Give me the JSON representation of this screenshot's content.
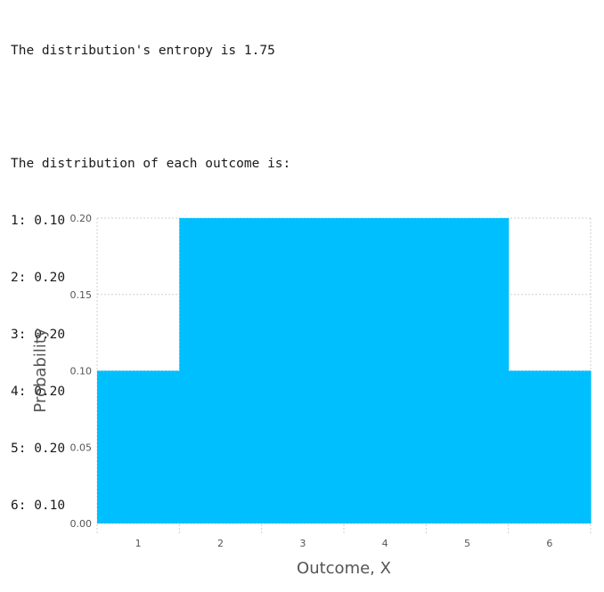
{
  "output": {
    "entropy_line": "The distribution's entropy is 1.75",
    "heading": "The distribution of each outcome is:",
    "rows": [
      "1: 0.10",
      "2: 0.20",
      "3: 0.20",
      "4: 0.20",
      "5: 0.20",
      "6: 0.10"
    ]
  },
  "chart_data": {
    "type": "bar",
    "categories": [
      "1",
      "2",
      "3",
      "4",
      "5",
      "6"
    ],
    "values": [
      0.1,
      0.2,
      0.2,
      0.2,
      0.2,
      0.1
    ],
    "xlabel": "Outcome, X",
    "ylabel": "Probability",
    "ylim": [
      0,
      0.2
    ],
    "yticks": [
      "0.00",
      "0.05",
      "0.10",
      "0.15",
      "0.20"
    ],
    "grid": true,
    "bar_color": "#00bfff",
    "grid_color": "#cfcfcf",
    "tick_label_color": "#555555",
    "axis_label_color": "#555555"
  }
}
